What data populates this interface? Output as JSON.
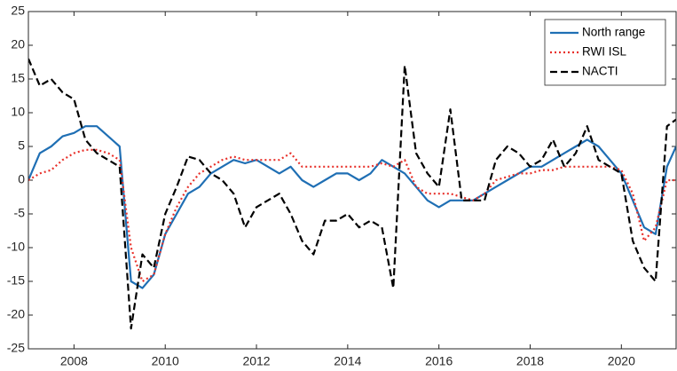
{
  "chart_data": {
    "type": "line",
    "x": [
      2007,
      2007.25,
      2007.5,
      2007.75,
      2008,
      2008.25,
      2008.5,
      2008.75,
      2009,
      2009.25,
      2009.5,
      2009.75,
      2010,
      2010.25,
      2010.5,
      2010.75,
      2011,
      2011.25,
      2011.5,
      2011.75,
      2012,
      2012.25,
      2012.5,
      2012.75,
      2013,
      2013.25,
      2013.5,
      2013.75,
      2014,
      2014.25,
      2014.5,
      2014.75,
      2015,
      2015.25,
      2015.5,
      2015.75,
      2016,
      2016.25,
      2016.5,
      2016.75,
      2017,
      2017.25,
      2017.5,
      2017.75,
      2018,
      2018.25,
      2018.5,
      2018.75,
      2019,
      2019.25,
      2019.5,
      2019.75,
      2020,
      2020.25,
      2020.5,
      2020.75,
      2021,
      2021.2
    ],
    "series": [
      {
        "name": "North range",
        "color": "#1f6fb4",
        "linestyle": "solid",
        "values": [
          0,
          4,
          5,
          6.5,
          7,
          8,
          8,
          6.5,
          5,
          -15,
          -16,
          -14,
          -8,
          -5,
          -2,
          -1,
          1,
          2,
          3,
          2.5,
          3,
          2,
          1,
          2,
          0,
          -1,
          0,
          1,
          1,
          0,
          1,
          3,
          2,
          1,
          -1,
          -3,
          -4,
          -3,
          -3,
          -3,
          -2,
          -1,
          0,
          1,
          2,
          2,
          3,
          4,
          5,
          6,
          5,
          3,
          1,
          -3,
          -7,
          -8,
          2,
          5
        ]
      },
      {
        "name": "RWI ISL",
        "color": "#e8302a",
        "linestyle": "dotted",
        "values": [
          0,
          1,
          1.5,
          3,
          4,
          4.5,
          4.5,
          4,
          3,
          -10,
          -15,
          -14,
          -8,
          -4,
          -1,
          1,
          2,
          3,
          3.5,
          3,
          3,
          3,
          3,
          4,
          2,
          2,
          2,
          2,
          2,
          2,
          2,
          2.5,
          2,
          3,
          -1,
          -2,
          -2,
          -2,
          -2.5,
          -3,
          -2,
          0,
          0.5,
          1,
          1,
          1.5,
          1.5,
          2,
          2,
          2,
          2,
          2,
          1.5,
          -2,
          -9,
          -7,
          0,
          0
        ]
      },
      {
        "name": "NACTI",
        "color": "#000000",
        "linestyle": "dashed",
        "values": [
          18,
          14,
          15,
          13,
          12,
          6,
          4,
          3,
          2,
          -22,
          -11,
          -13,
          -5,
          -1,
          3.5,
          3,
          1,
          0,
          -2,
          -7,
          -4,
          -3,
          -2,
          -5,
          -9,
          -11,
          -6,
          -6,
          -5,
          -7,
          -6,
          -7,
          -16,
          17,
          4,
          1,
          -1,
          10.5,
          -3,
          -3,
          -3,
          3,
          5,
          4,
          2,
          3,
          6,
          2,
          4,
          8,
          3,
          2,
          1,
          -9,
          -13,
          -15,
          8,
          9
        ]
      }
    ],
    "xlim": [
      2007,
      2021.2
    ],
    "xticks": [
      2008,
      2010,
      2012,
      2014,
      2016,
      2018,
      2020
    ],
    "ylim": [
      -25,
      25
    ],
    "yticks": [
      -25,
      -20,
      -15,
      -10,
      -5,
      0,
      5,
      10,
      15,
      20,
      25
    ],
    "grid": false,
    "legend": "upper right"
  }
}
